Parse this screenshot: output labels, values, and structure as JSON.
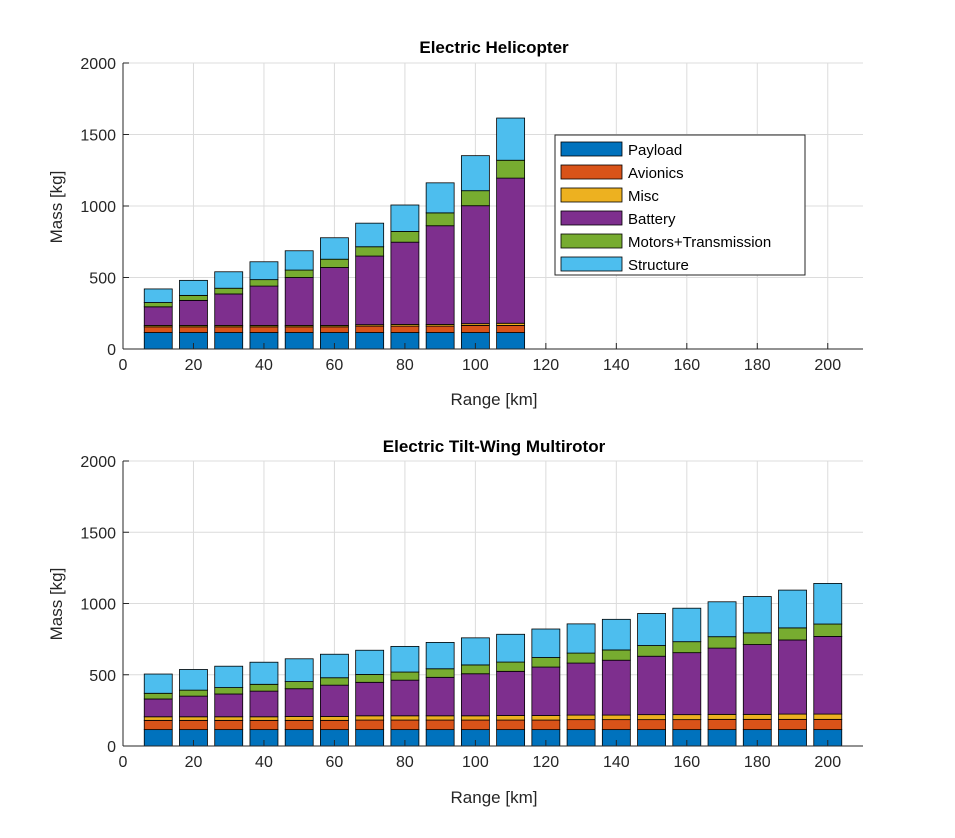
{
  "colors": {
    "Payload": "#0072bd",
    "Avionics": "#d95319",
    "Misc": "#edb120",
    "Battery": "#7e2f8e",
    "Motors+Transmission": "#77ac30",
    "Structure": "#4dbeee"
  },
  "chart_data": [
    {
      "type": "bar",
      "stacked": true,
      "title": "Electric Helicopter",
      "xlabel": "Range [km]",
      "ylabel": "Mass [kg]",
      "xlim": [
        0,
        210
      ],
      "ylim": [
        0,
        2000
      ],
      "xticks": [
        0,
        20,
        40,
        60,
        80,
        100,
        120,
        140,
        160,
        180,
        200
      ],
      "yticks": [
        0,
        500,
        1000,
        1500,
        2000
      ],
      "grid": true,
      "legend": {
        "placement": "inside-right",
        "entries": [
          "Payload",
          "Avionics",
          "Misc",
          "Battery",
          "Motors+Transmission",
          "Structure"
        ]
      },
      "x": [
        10,
        20,
        30,
        40,
        50,
        60,
        70,
        80,
        90,
        100,
        110
      ],
      "series": [
        {
          "name": "Payload",
          "values": [
            115,
            115,
            115,
            115,
            115,
            115,
            115,
            115,
            115,
            115,
            115
          ]
        },
        {
          "name": "Avionics",
          "values": [
            40,
            40,
            40,
            40,
            40,
            40,
            45,
            45,
            45,
            50,
            50
          ]
        },
        {
          "name": "Misc",
          "values": [
            10,
            10,
            10,
            10,
            10,
            10,
            10,
            12,
            12,
            12,
            15
          ]
        },
        {
          "name": "Battery",
          "values": [
            130,
            175,
            220,
            275,
            335,
            405,
            480,
            575,
            690,
            825,
            1015
          ]
        },
        {
          "name": "Motors+Transmission",
          "values": [
            30,
            35,
            40,
            45,
            52,
            58,
            65,
            75,
            90,
            105,
            125
          ]
        },
        {
          "name": "Structure",
          "values": [
            95,
            105,
            115,
            125,
            135,
            150,
            165,
            185,
            210,
            245,
            295
          ]
        }
      ]
    },
    {
      "type": "bar",
      "stacked": true,
      "title": "Electric Tilt-Wing Multirotor",
      "xlabel": "Range [km]",
      "ylabel": "Mass [kg]",
      "xlim": [
        0,
        210
      ],
      "ylim": [
        0,
        2000
      ],
      "xticks": [
        0,
        20,
        40,
        60,
        80,
        100,
        120,
        140,
        160,
        180,
        200
      ],
      "yticks": [
        0,
        500,
        1000,
        1500,
        2000
      ],
      "grid": true,
      "x": [
        10,
        20,
        30,
        40,
        50,
        60,
        70,
        80,
        90,
        100,
        110,
        120,
        130,
        140,
        150,
        160,
        170,
        180,
        190,
        200
      ],
      "series": [
        {
          "name": "Payload",
          "values": [
            115,
            115,
            115,
            115,
            115,
            115,
            115,
            115,
            115,
            115,
            115,
            115,
            115,
            115,
            115,
            115,
            115,
            115,
            115,
            115
          ]
        },
        {
          "name": "Avionics",
          "values": [
            65,
            65,
            65,
            65,
            65,
            65,
            67,
            67,
            67,
            67,
            67,
            67,
            70,
            70,
            70,
            70,
            72,
            72,
            72,
            72
          ]
        },
        {
          "name": "Misc",
          "values": [
            25,
            25,
            25,
            25,
            27,
            27,
            30,
            30,
            30,
            30,
            32,
            32,
            32,
            32,
            35,
            35,
            35,
            35,
            37,
            37
          ]
        },
        {
          "name": "Battery",
          "values": [
            125,
            145,
            160,
            180,
            195,
            220,
            235,
            250,
            270,
            295,
            310,
            340,
            365,
            385,
            410,
            435,
            465,
            490,
            520,
            545
          ]
        },
        {
          "name": "Motors+Transmission",
          "values": [
            40,
            42,
            45,
            48,
            50,
            52,
            55,
            57,
            60,
            62,
            65,
            67,
            70,
            72,
            75,
            77,
            80,
            82,
            85,
            87
          ]
        },
        {
          "name": "Structure",
          "values": [
            135,
            145,
            150,
            155,
            160,
            165,
            170,
            180,
            185,
            190,
            195,
            200,
            205,
            215,
            225,
            235,
            245,
            255,
            265,
            285
          ]
        }
      ]
    }
  ]
}
